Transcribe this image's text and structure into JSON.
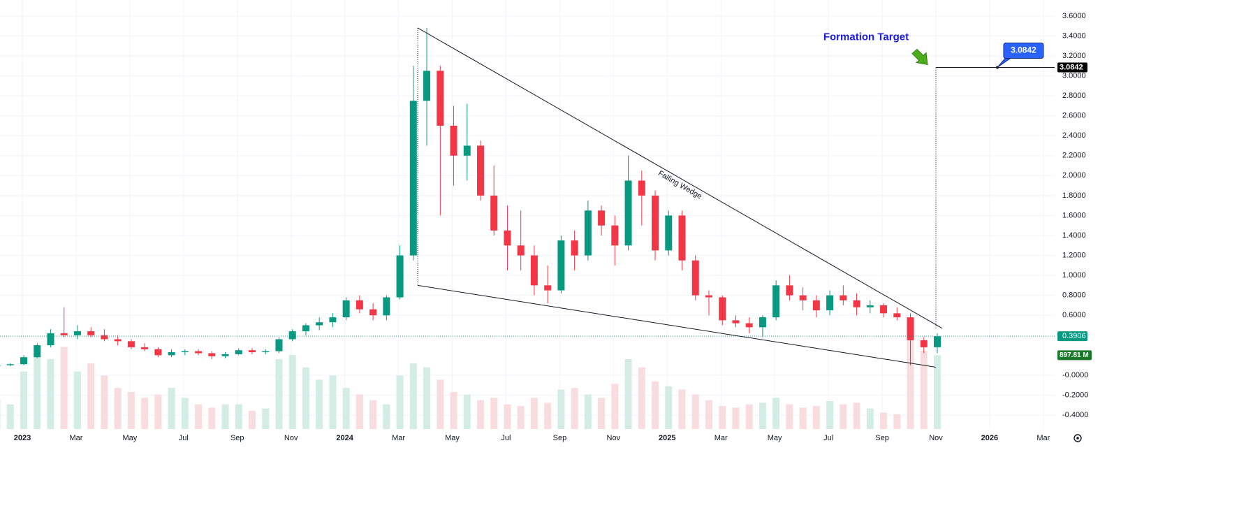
{
  "chart_data": {
    "type": "candlestick",
    "x": [
      "2022-12",
      "2022-12",
      "2023-01",
      "2023-01",
      "2023-02",
      "2023-02",
      "2023-03",
      "2023-03",
      "2023-04",
      "2023-04",
      "2023-05",
      "2023-05",
      "2023-06",
      "2023-06",
      "2023-07",
      "2023-07",
      "2023-08",
      "2023-08",
      "2023-09",
      "2023-09",
      "2023-10",
      "2023-10",
      "2023-11",
      "2023-11",
      "2023-12",
      "2023-12",
      "2024-01",
      "2024-01",
      "2024-02",
      "2024-02",
      "2024-03",
      "2024-03",
      "2024-04",
      "2024-04",
      "2024-05",
      "2024-05",
      "2024-06",
      "2024-06",
      "2024-07",
      "2024-07",
      "2024-08",
      "2024-08",
      "2024-09",
      "2024-09",
      "2024-10",
      "2024-10",
      "2024-11",
      "2024-11",
      "2024-12",
      "2024-12",
      "2025-01",
      "2025-01",
      "2025-02",
      "2025-02",
      "2025-03",
      "2025-03",
      "2025-04",
      "2025-04",
      "2025-05",
      "2025-05",
      "2025-06",
      "2025-06",
      "2025-07",
      "2025-07",
      "2025-08",
      "2025-08",
      "2025-09",
      "2025-09",
      "2025-10",
      "2025-10",
      "2025-11"
    ],
    "open": [
      0.09,
      0.1,
      0.11,
      0.18,
      0.3,
      0.42,
      0.4,
      0.44,
      0.4,
      0.36,
      0.34,
      0.28,
      0.26,
      0.2,
      0.23,
      0.24,
      0.22,
      0.19,
      0.21,
      0.25,
      0.23,
      0.24,
      0.36,
      0.44,
      0.5,
      0.53,
      0.58,
      0.75,
      0.66,
      0.6,
      0.78,
      1.2,
      2.75,
      3.05,
      2.5,
      2.2,
      2.3,
      1.8,
      1.45,
      1.3,
      1.2,
      0.9,
      0.85,
      1.35,
      1.2,
      1.65,
      1.5,
      1.3,
      1.95,
      1.8,
      1.25,
      1.6,
      1.15,
      0.8,
      0.78,
      0.55,
      0.52,
      0.48,
      0.58,
      0.9,
      0.8,
      0.75,
      0.65,
      0.8,
      0.75,
      0.68,
      0.7,
      0.62,
      0.58,
      0.35,
      0.28
    ],
    "high": [
      0.11,
      0.12,
      0.2,
      0.32,
      0.46,
      0.68,
      0.5,
      0.48,
      0.46,
      0.4,
      0.36,
      0.32,
      0.28,
      0.26,
      0.26,
      0.26,
      0.24,
      0.23,
      0.27,
      0.27,
      0.26,
      0.38,
      0.46,
      0.52,
      0.58,
      0.62,
      0.78,
      0.8,
      0.72,
      0.8,
      1.3,
      3.1,
      3.48,
      3.1,
      2.7,
      2.72,
      2.35,
      2.1,
      1.7,
      1.65,
      1.3,
      1.1,
      1.4,
      1.45,
      1.75,
      1.7,
      1.6,
      2.2,
      2.05,
      1.85,
      1.65,
      1.65,
      1.2,
      0.85,
      0.8,
      0.6,
      0.58,
      0.6,
      0.95,
      1.0,
      0.88,
      0.8,
      0.85,
      0.9,
      0.82,
      0.75,
      0.72,
      0.68,
      0.62,
      0.38,
      0.42
    ],
    "low": [
      0.08,
      0.09,
      0.1,
      0.17,
      0.28,
      0.38,
      0.36,
      0.38,
      0.34,
      0.3,
      0.26,
      0.24,
      0.18,
      0.18,
      0.2,
      0.2,
      0.16,
      0.17,
      0.2,
      0.21,
      0.21,
      0.22,
      0.34,
      0.4,
      0.45,
      0.48,
      0.55,
      0.62,
      0.55,
      0.55,
      0.76,
      1.15,
      2.3,
      1.6,
      1.9,
      1.95,
      1.75,
      1.4,
      1.05,
      1.05,
      0.8,
      0.72,
      0.82,
      1.05,
      1.15,
      1.4,
      1.1,
      1.25,
      1.5,
      1.15,
      1.2,
      1.05,
      0.75,
      0.6,
      0.5,
      0.48,
      0.42,
      0.38,
      0.55,
      0.75,
      0.65,
      0.58,
      0.6,
      0.7,
      0.6,
      0.62,
      0.58,
      0.55,
      0.1,
      0.22,
      0.22
    ],
    "close": [
      0.1,
      0.11,
      0.18,
      0.3,
      0.42,
      0.4,
      0.44,
      0.4,
      0.36,
      0.34,
      0.28,
      0.26,
      0.2,
      0.23,
      0.24,
      0.22,
      0.19,
      0.21,
      0.25,
      0.23,
      0.24,
      0.36,
      0.44,
      0.5,
      0.53,
      0.58,
      0.75,
      0.66,
      0.6,
      0.78,
      1.2,
      2.75,
      3.05,
      2.5,
      2.2,
      2.3,
      1.8,
      1.45,
      1.3,
      1.2,
      0.9,
      0.85,
      1.35,
      1.2,
      1.65,
      1.5,
      1.3,
      1.95,
      1.8,
      1.25,
      1.6,
      1.15,
      0.8,
      0.78,
      0.55,
      0.52,
      0.48,
      0.58,
      0.9,
      0.8,
      0.75,
      0.65,
      0.8,
      0.75,
      0.68,
      0.7,
      0.62,
      0.58,
      0.35,
      0.28,
      0.3906
    ],
    "volume": [
      350,
      300,
      700,
      900,
      850,
      1000,
      700,
      800,
      650,
      500,
      450,
      380,
      420,
      500,
      380,
      300,
      260,
      300,
      300,
      220,
      250,
      850,
      900,
      750,
      600,
      650,
      500,
      420,
      350,
      300,
      650,
      800,
      750,
      600,
      450,
      420,
      350,
      380,
      300,
      280,
      380,
      320,
      480,
      500,
      420,
      380,
      550,
      850,
      750,
      580,
      520,
      480,
      420,
      350,
      280,
      260,
      300,
      320,
      380,
      300,
      260,
      280,
      340,
      300,
      320,
      250,
      200,
      180,
      1100,
      950,
      897.81
    ],
    "last_volume_label": "897.81 M",
    "up_color": "#089981",
    "down_color": "#f23645",
    "volume_up_color": "#d3ece6",
    "volume_down_color": "#f8dcdf",
    "ylim": [
      -0.54,
      3.76
    ],
    "volume_ylim": [
      0,
      1700
    ],
    "yticks": [
      {
        "value": 3.6,
        "label": "3.6000"
      },
      {
        "value": 3.4,
        "label": "3.4000"
      },
      {
        "value": 3.2,
        "label": "3.2000"
      },
      {
        "value": 3.0,
        "label": "3.0000"
      },
      {
        "value": 2.8,
        "label": "2.8000"
      },
      {
        "value": 2.6,
        "label": "2.6000"
      },
      {
        "value": 2.4,
        "label": "2.4000"
      },
      {
        "value": 2.2,
        "label": "2.2000"
      },
      {
        "value": 2.0,
        "label": "2.0000"
      },
      {
        "value": 1.8,
        "label": "1.8000"
      },
      {
        "value": 1.6,
        "label": "1.6000"
      },
      {
        "value": 1.4,
        "label": "1.4000"
      },
      {
        "value": 1.2,
        "label": "1.2000"
      },
      {
        "value": 1.0,
        "label": "1.0000"
      },
      {
        "value": 0.8,
        "label": "0.8000"
      },
      {
        "value": 0.6,
        "label": "0.6000"
      },
      {
        "value": 0,
        "label": "-0.0000"
      },
      {
        "value": -0.2,
        "label": "-0.2000"
      },
      {
        "value": -0.4,
        "label": "-0.4000"
      }
    ],
    "xticks": [
      {
        "value": "2023-01",
        "label": "2023"
      },
      {
        "value": "2023-03",
        "label": "Mar"
      },
      {
        "value": "2023-05",
        "label": "May"
      },
      {
        "value": "2023-07",
        "label": "Jul"
      },
      {
        "value": "2023-09",
        "label": "Sep"
      },
      {
        "value": "2023-11",
        "label": "Nov"
      },
      {
        "value": "2024-01",
        "label": "2024"
      },
      {
        "value": "2024-03",
        "label": "Mar"
      },
      {
        "value": "2024-05",
        "label": "May"
      },
      {
        "value": "2024-07",
        "label": "Jul"
      },
      {
        "value": "2024-09",
        "label": "Sep"
      },
      {
        "value": "2024-11",
        "label": "Nov"
      },
      {
        "value": "2025-01",
        "label": "2025"
      },
      {
        "value": "2025-03",
        "label": "Mar"
      },
      {
        "value": "2025-05",
        "label": "May"
      },
      {
        "value": "2025-07",
        "label": "Jul"
      },
      {
        "value": "2025-09",
        "label": "Sep"
      },
      {
        "value": "2025-11",
        "label": "Nov"
      },
      {
        "value": "2026-01",
        "label": "2026"
      },
      {
        "value": "2026-03",
        "label": "Mar"
      }
    ],
    "grid": true,
    "annotations": {
      "wedge_label": "Falling Wedge",
      "target_label": "Formation Target",
      "target": 3.0842,
      "wedge_upper": {
        "x": [
          "2024-04",
          "2025-11"
        ],
        "y": [
          3.48,
          0.47
        ]
      },
      "wedge_lower": {
        "x": [
          "2024-04",
          "2025-11"
        ],
        "y": [
          0.9,
          0.08
        ]
      }
    }
  }
}
